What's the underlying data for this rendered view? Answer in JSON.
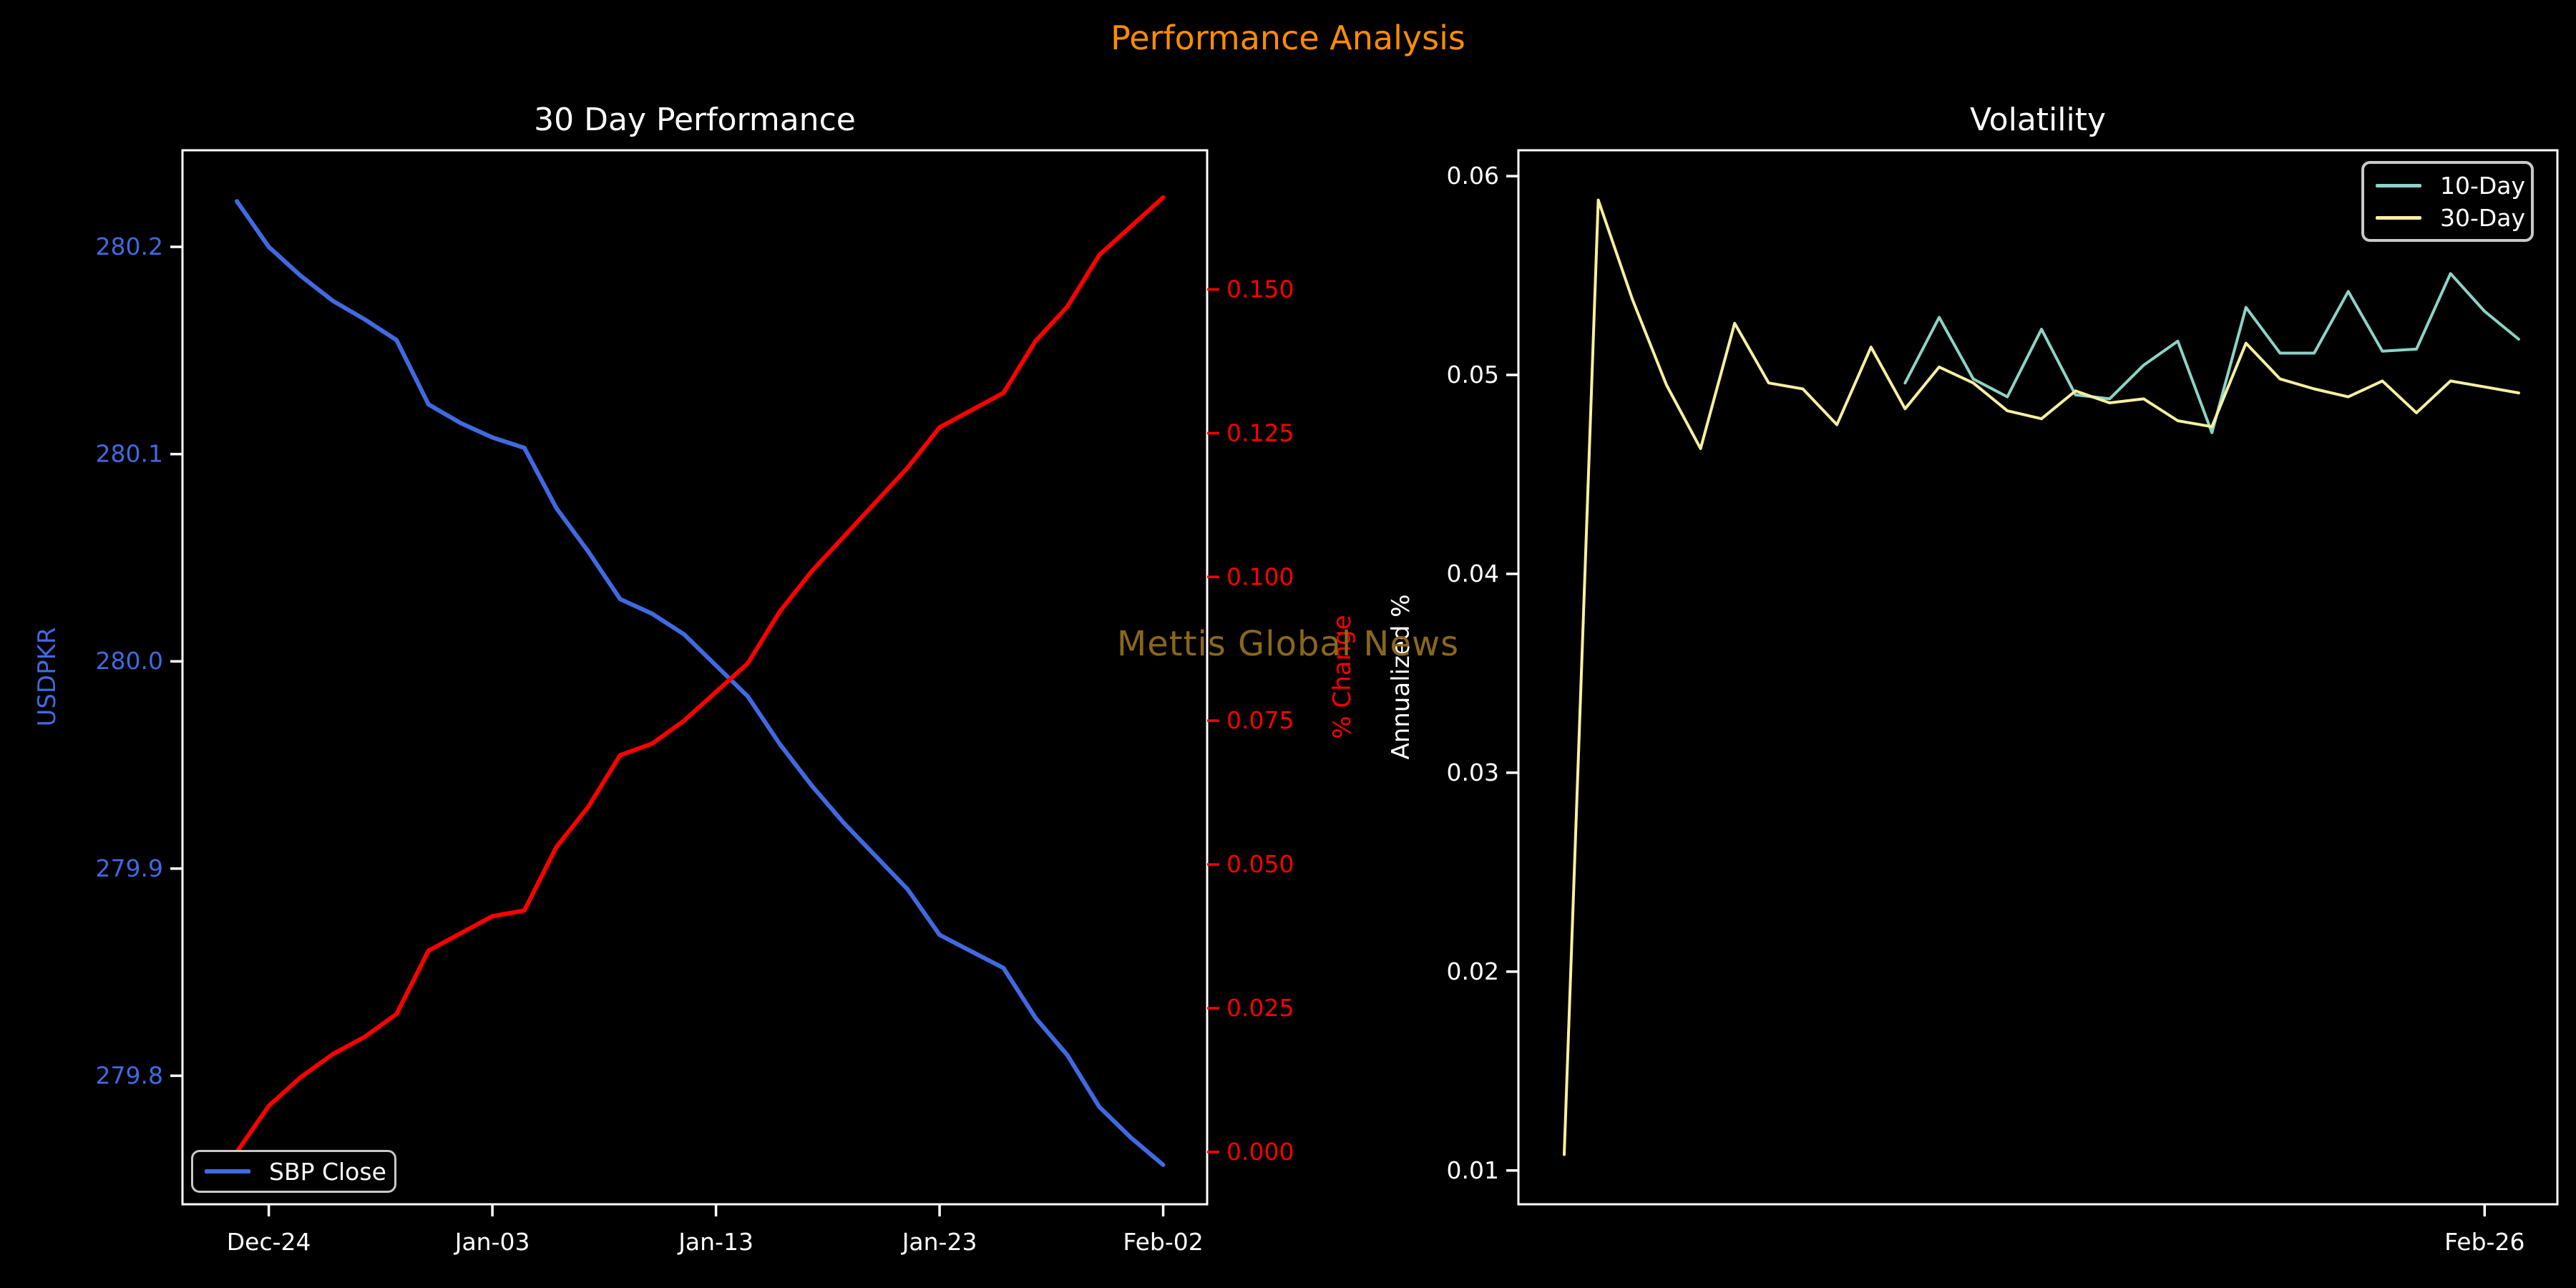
{
  "figure": {
    "suptitle": "Performance Analysis",
    "suptitle_color": "#ff8c00",
    "background_color": "#000000",
    "watermark": {
      "text": "Mettis Global News",
      "color": "#8a671c"
    }
  },
  "chart_data": [
    {
      "id": "performance",
      "type": "line",
      "title": "30 Day Performance",
      "x_count": 30,
      "x_axis": {
        "tick_labels": [
          "Dec-24",
          "Jan-03",
          "Jan-13",
          "Jan-23",
          "Feb-02"
        ],
        "tick_indices": [
          1,
          8,
          15,
          22,
          29
        ]
      },
      "left_axis": {
        "label": "USDPKR",
        "color": "#4169e1",
        "tick_color": "#ffffff",
        "ticks": [
          280.2,
          280.1,
          280.0,
          279.9,
          279.8
        ],
        "tick_labels": [
          "280.2",
          "280.1",
          "280.0",
          "279.9",
          "279.8"
        ],
        "ylim": [
          279.738,
          280.2466
        ]
      },
      "right_axis": {
        "label": "% Change",
        "color": "#ff0000",
        "tick_color": "#ff0000",
        "ticks": [
          0.15,
          0.125,
          0.1,
          0.075,
          0.05,
          0.025,
          0.0
        ],
        "tick_labels": [
          "0.150",
          "0.125",
          "0.100",
          "0.075",
          "0.050",
          "0.025",
          "0.000"
        ],
        "ylim": [
          -0.0091,
          0.1742
        ]
      },
      "series": [
        {
          "name": "SBP Close",
          "axis": "left",
          "color": "#4169e1",
          "linewidth": 6,
          "start_index": 0,
          "values": [
            280.222,
            280.2,
            280.186,
            280.174,
            280.165,
            280.155,
            280.124,
            280.115,
            280.108,
            280.103,
            280.074,
            280.053,
            280.03,
            280.023,
            280.013,
            279.998,
            279.983,
            279.96,
            279.94,
            279.922,
            279.906,
            279.89,
            279.868,
            279.86,
            279.852,
            279.828,
            279.81,
            279.785,
            279.77,
            279.757
          ]
        },
        {
          "name": "% Change",
          "axis": "right",
          "color": "#ff0000",
          "linewidth": 6,
          "start_index": 0,
          "values": [
            0.0,
            0.008,
            0.013,
            0.017,
            0.02,
            0.024,
            0.035,
            0.038,
            0.041,
            0.042,
            0.053,
            0.06,
            0.069,
            0.071,
            0.075,
            0.08,
            0.085,
            0.094,
            0.101,
            0.107,
            0.113,
            0.119,
            0.126,
            0.129,
            0.132,
            0.141,
            0.147,
            0.156,
            0.161,
            0.166
          ]
        }
      ],
      "legend": {
        "position": "lower-left",
        "items": [
          {
            "label": "SBP Close",
            "color": "#4169e1"
          }
        ]
      }
    },
    {
      "id": "volatility",
      "type": "line",
      "title": "Volatility",
      "x_count": 29,
      "x_axis": {
        "tick_labels": [
          "Feb-26"
        ],
        "tick_indices": [
          27
        ]
      },
      "y_axis": {
        "label": "Annualized %",
        "color": "#ffffff",
        "tick_color": "#ffffff",
        "ticks": [
          0.06,
          0.05,
          0.04,
          0.03,
          0.02,
          0.01
        ],
        "tick_labels": [
          "0.06",
          "0.05",
          "0.04",
          "0.03",
          "0.02",
          "0.01"
        ],
        "ylim": [
          0.0083,
          0.0613
        ]
      },
      "series": [
        {
          "name": "10-Day",
          "axis": "left",
          "color": "#8dd3c7",
          "linewidth": 4,
          "start_index": 10,
          "values": [
            0.0496,
            0.0529,
            0.0498,
            0.0489,
            0.0523,
            0.049,
            0.0488,
            0.0505,
            0.0517,
            0.0471,
            0.0534,
            0.0511,
            0.0511,
            0.0542,
            0.0512,
            0.0513,
            0.0551,
            0.0532,
            0.0518
          ]
        },
        {
          "name": "30-Day",
          "axis": "left",
          "color": "#f6f0a0",
          "linewidth": 4,
          "start_index": 0,
          "values": [
            0.0108,
            0.0588,
            0.0538,
            0.0495,
            0.0463,
            0.0526,
            0.0496,
            0.0493,
            0.0475,
            0.0514,
            0.0483,
            0.0504,
            0.0496,
            0.0482,
            0.0478,
            0.0492,
            0.0486,
            0.0488,
            0.0477,
            0.0474,
            0.0516,
            0.0498,
            0.0493,
            0.0489,
            0.0497,
            0.0481,
            0.0497,
            0.0494,
            0.0491
          ]
        }
      ],
      "legend": {
        "position": "upper-right",
        "items": [
          {
            "label": "10-Day",
            "color": "#8dd3c7"
          },
          {
            "label": "30-Day",
            "color": "#f6f0a0"
          }
        ]
      }
    }
  ]
}
